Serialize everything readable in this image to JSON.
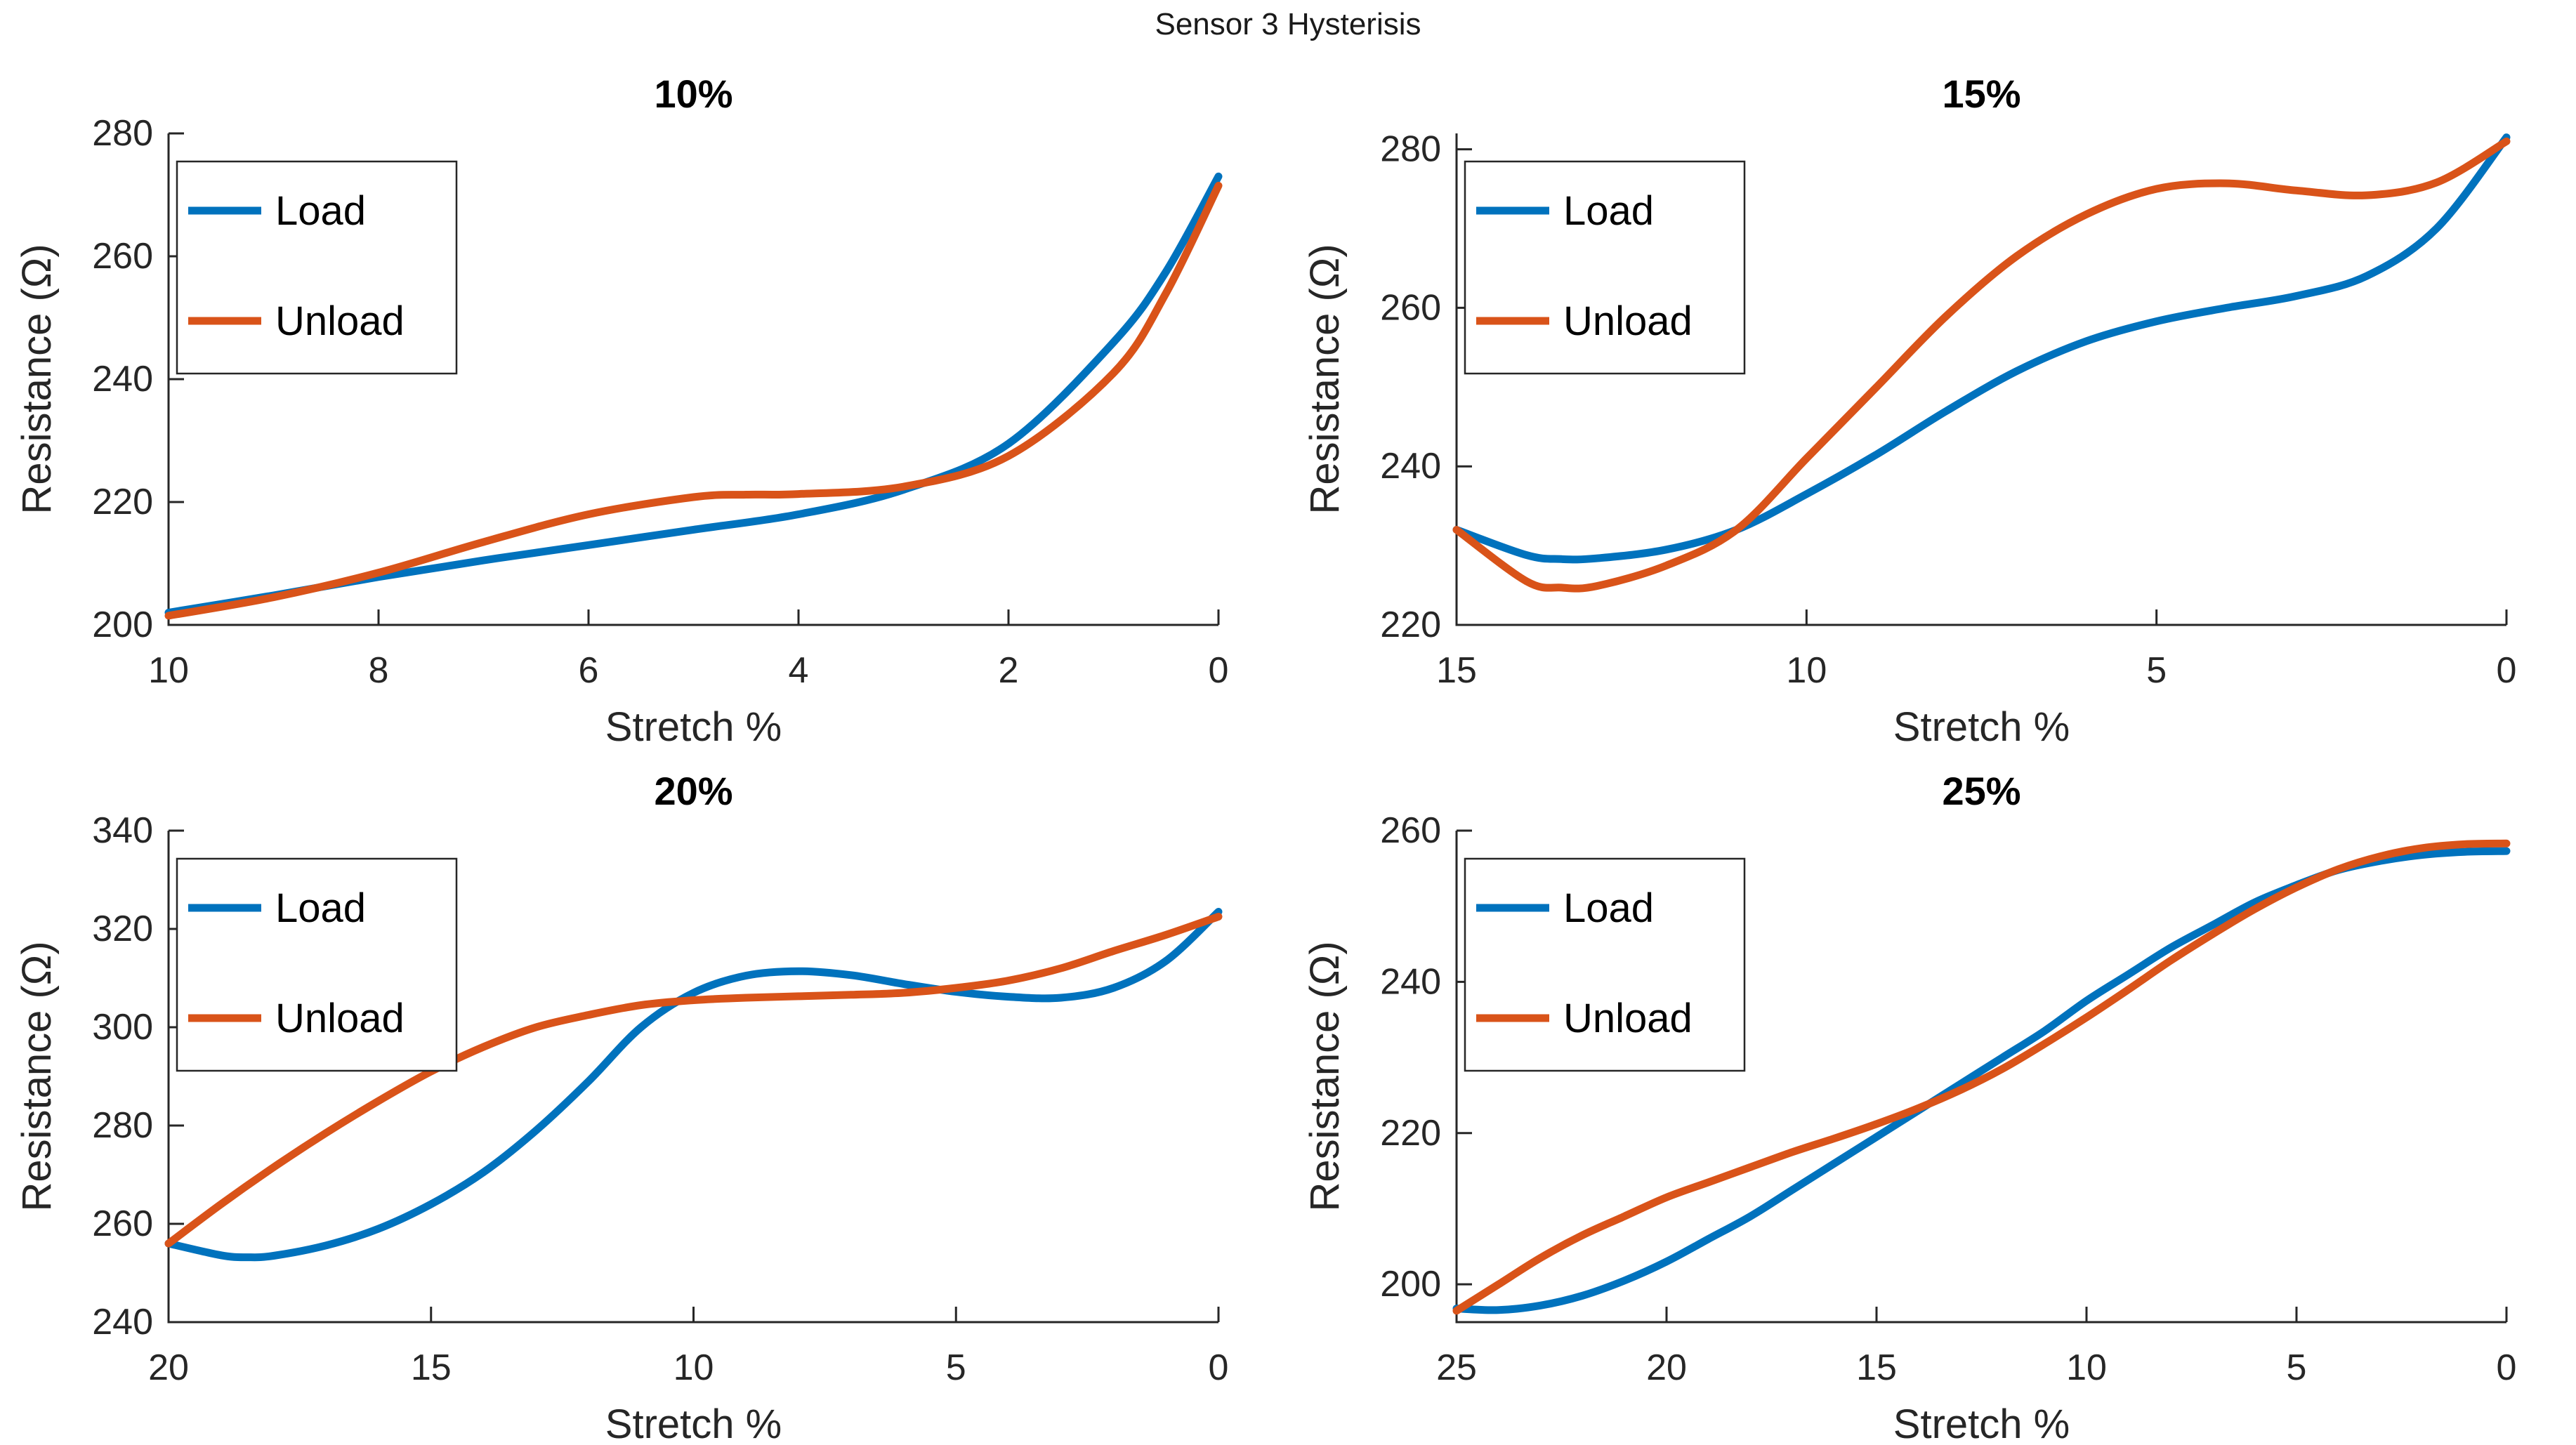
{
  "figure": {
    "title": "Sensor 3 Hysterisis",
    "background": "#ffffff",
    "text_color": "#262626",
    "axis_color": "#262626",
    "title_color": "#000000"
  },
  "colors": {
    "load": "#0072BD",
    "unload": "#D95319"
  },
  "legend": {
    "position": "top-left",
    "entries": [
      "Load",
      "Unload"
    ]
  },
  "chart_data": [
    {
      "type": "line",
      "title": "10%",
      "xlabel": "Stretch %",
      "ylabel": "Resistance (Ω)",
      "x_direction": "reversed",
      "grid": false,
      "xlim": [
        0,
        10
      ],
      "ylim": [
        200,
        280
      ],
      "xticks": [
        10,
        8,
        6,
        4,
        2,
        0
      ],
      "yticks": [
        200,
        220,
        240,
        260,
        280
      ],
      "legend_position": "top-left",
      "series": [
        {
          "name": "Load",
          "color_key": "load",
          "x": [
            10,
            9,
            8,
            7,
            6,
            5,
            4,
            3,
            2,
            1,
            0.5,
            0
          ],
          "y": [
            202,
            204.8,
            207.8,
            210.5,
            213,
            215.5,
            218,
            222,
            229.5,
            246,
            257.5,
            273
          ]
        },
        {
          "name": "Unload",
          "color_key": "unload",
          "x": [
            10,
            9,
            8,
            7,
            6,
            5,
            4.5,
            4,
            3,
            2,
            1,
            0.5,
            0
          ],
          "y": [
            201.5,
            204.5,
            208.5,
            213.5,
            218,
            220.8,
            221.2,
            221.3,
            222.5,
            227.5,
            241,
            254,
            271.5
          ]
        }
      ]
    },
    {
      "type": "line",
      "title": "15%",
      "xlabel": "Stretch %",
      "ylabel": "Resistance (Ω)",
      "x_direction": "reversed",
      "grid": false,
      "xlim": [
        0,
        15
      ],
      "ylim": [
        220,
        282
      ],
      "xticks": [
        15,
        10,
        5,
        0
      ],
      "yticks": [
        220,
        240,
        260,
        280
      ],
      "legend_position": "top-left",
      "series": [
        {
          "name": "Load",
          "color_key": "load",
          "x": [
            15,
            14,
            13.5,
            13,
            12,
            11,
            10,
            9,
            8,
            7,
            6,
            5,
            4,
            3,
            2,
            1,
            0
          ],
          "y": [
            232,
            228.8,
            228.3,
            228.4,
            229.5,
            232,
            236.5,
            241.5,
            247,
            252,
            255.8,
            258.3,
            260,
            261.5,
            264,
            270,
            281.5
          ]
        },
        {
          "name": "Unload",
          "color_key": "unload",
          "x": [
            15,
            14,
            13.5,
            13,
            12,
            11,
            10,
            9,
            8,
            7,
            6,
            5,
            4,
            3,
            2,
            1,
            0
          ],
          "y": [
            232,
            225.5,
            224.7,
            224.9,
            227.5,
            232,
            241,
            250,
            259,
            266.5,
            271.8,
            275,
            275.7,
            274.8,
            274.2,
            275.8,
            281
          ]
        }
      ]
    },
    {
      "type": "line",
      "title": "20%",
      "xlabel": "Stretch %",
      "ylabel": "Resistance (Ω)",
      "x_direction": "reversed",
      "grid": false,
      "xlim": [
        0,
        20
      ],
      "ylim": [
        240,
        340
      ],
      "xticks": [
        20,
        15,
        10,
        5,
        0
      ],
      "yticks": [
        240,
        260,
        280,
        300,
        320,
        340
      ],
      "legend_position": "top-left",
      "series": [
        {
          "name": "Load",
          "color_key": "load",
          "x": [
            20,
            19,
            18.5,
            18,
            17,
            16,
            15,
            14,
            13,
            12,
            11,
            10,
            9,
            8,
            7,
            6,
            5,
            4,
            3,
            2,
            1,
            0
          ],
          "y": [
            256,
            253.6,
            253.2,
            253.5,
            255.6,
            259,
            264,
            270.5,
            279,
            289,
            300,
            307,
            310.5,
            311.4,
            310.6,
            308.8,
            307.2,
            306.2,
            306,
            308,
            313.5,
            323.5
          ]
        },
        {
          "name": "Unload",
          "color_key": "unload",
          "x": [
            20,
            19,
            18,
            17,
            16,
            15,
            14,
            13,
            12,
            11,
            10,
            9,
            8,
            7,
            6,
            5,
            4,
            3,
            2,
            1,
            0
          ],
          "y": [
            256,
            264,
            271.5,
            278.5,
            285,
            291,
            296,
            300,
            302.5,
            304.5,
            305.5,
            306,
            306.3,
            306.6,
            307,
            308,
            309.5,
            312,
            315.5,
            318.8,
            322.5
          ]
        }
      ]
    },
    {
      "type": "line",
      "title": "25%",
      "xlabel": "Stretch %",
      "ylabel": "Resistance (Ω)",
      "x_direction": "reversed",
      "grid": false,
      "xlim": [
        0,
        25
      ],
      "ylim": [
        195,
        260
      ],
      "xticks": [
        25,
        20,
        15,
        10,
        5,
        0
      ],
      "yticks": [
        200,
        220,
        240,
        260
      ],
      "legend_position": "top-left",
      "series": [
        {
          "name": "Load",
          "color_key": "load",
          "x": [
            25,
            24,
            23,
            22,
            21,
            20,
            19,
            18,
            17,
            16,
            15,
            14,
            13,
            12,
            11,
            10,
            9,
            8,
            7,
            6,
            5,
            4,
            3,
            2,
            1,
            0
          ],
          "y": [
            196.8,
            196.6,
            197.2,
            198.5,
            200.5,
            203,
            206,
            209,
            212.5,
            216,
            219.5,
            223,
            226.5,
            230,
            233.5,
            237.5,
            241,
            244.5,
            247.5,
            250.5,
            252.8,
            254.8,
            256,
            256.8,
            257.2,
            257.3
          ]
        },
        {
          "name": "Unload",
          "color_key": "unload",
          "x": [
            25,
            24,
            23,
            22,
            21,
            20,
            19,
            18,
            17,
            16,
            15,
            14,
            13,
            12,
            11,
            10,
            9,
            8,
            7,
            6,
            5,
            4,
            3,
            2,
            1,
            0
          ],
          "y": [
            196.5,
            200,
            203.5,
            206.5,
            209,
            211.5,
            213.5,
            215.5,
            217.5,
            219.3,
            221.2,
            223.3,
            225.7,
            228.5,
            231.8,
            235.3,
            239,
            242.8,
            246.3,
            249.6,
            252.5,
            254.9,
            256.6,
            257.7,
            258.2,
            258.3
          ]
        }
      ]
    }
  ]
}
